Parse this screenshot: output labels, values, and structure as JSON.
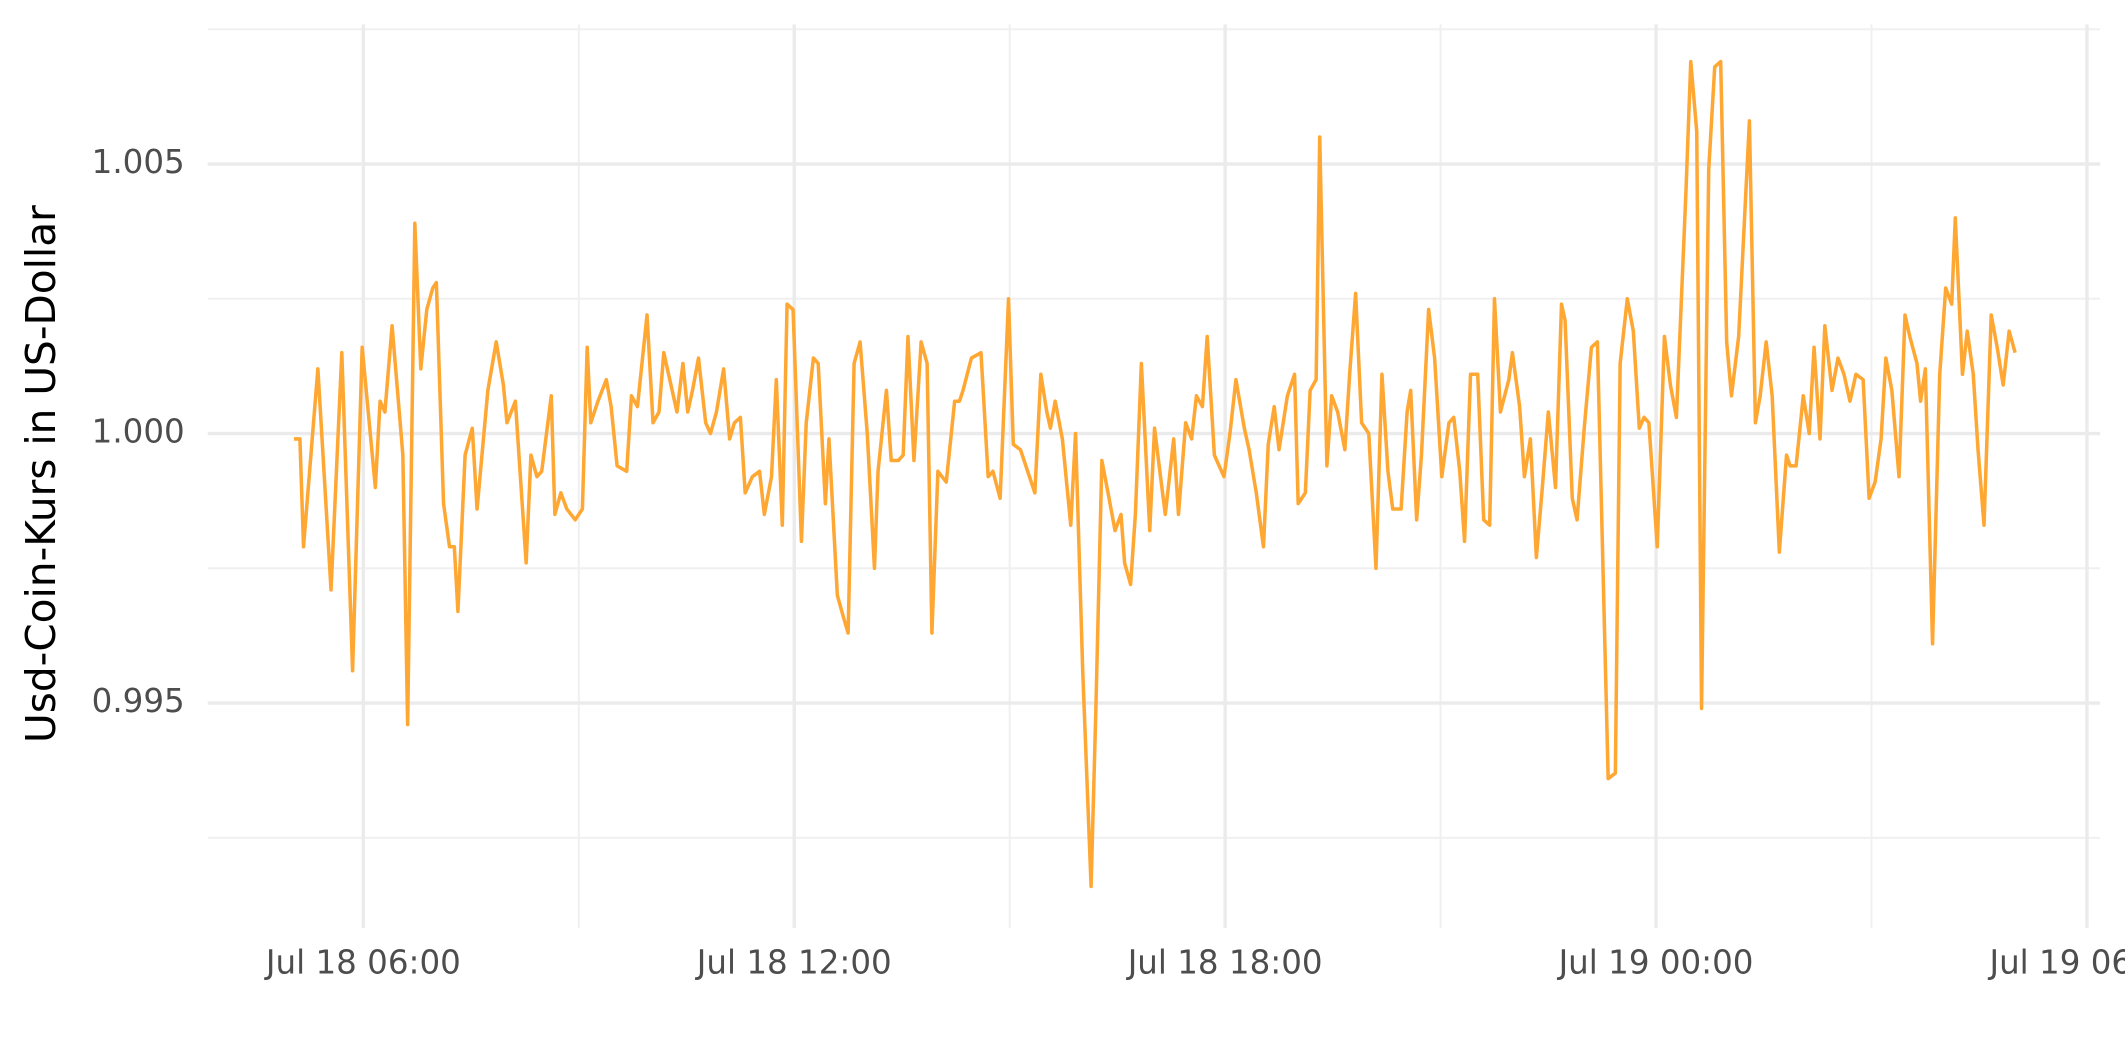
{
  "chart_data": {
    "type": "line",
    "y_label": "Usd-Coin-Kurs in US-Dollar",
    "color": "#ffa733",
    "grid": true,
    "xlim": [
      "Jul 18 03:50",
      "Jul 19 06:11"
    ],
    "xticks": [
      "Jul 18 06:00",
      "Jul 18 12:00",
      "Jul 18 18:00",
      "Jul 19 00:00",
      "Jul 19 06:00"
    ],
    "ylim": [
      0.99083,
      1.00759
    ],
    "yticks": [
      0.995,
      {
        "value": 1,
        "label": "1.000"
      },
      1.005
    ],
    "x": [
      "Jul 18 05:02",
      "Jul 18 05:07",
      "Jul 18 05:10",
      "Jul 18 05:22",
      "Jul 18 05:33",
      "Jul 18 05:42",
      "Jul 18 05:51",
      "Jul 18 05:59",
      "Jul 18 06:10",
      "Jul 18 06:14",
      "Jul 18 06:18",
      "Jul 18 06:24",
      "Jul 18 06:33",
      "Jul 18 06:37",
      "Jul 18 06:43",
      "Jul 18 06:48",
      "Jul 18 06:53",
      "Jul 18 06:58",
      "Jul 18 07:01",
      "Jul 18 07:07",
      "Jul 18 07:12",
      "Jul 18 07:16",
      "Jul 18 07:19",
      "Jul 18 07:25",
      "Jul 18 07:31",
      "Jul 18 07:35",
      "Jul 18 07:44",
      "Jul 18 07:51",
      "Jul 18 07:57",
      "Jul 18 08:00",
      "Jul 18 08:07",
      "Jul 18 08:16",
      "Jul 18 08:20",
      "Jul 18 08:25",
      "Jul 18 08:29",
      "Jul 18 08:37",
      "Jul 18 08:40",
      "Jul 18 08:45",
      "Jul 18 08:50",
      "Jul 18 08:57",
      "Jul 18 09:03",
      "Jul 18 09:07",
      "Jul 18 09:10",
      "Jul 18 09:16",
      "Jul 18 09:23",
      "Jul 18 09:27",
      "Jul 18 09:32",
      "Jul 18 09:40",
      "Jul 18 09:44",
      "Jul 18 09:49",
      "Jul 18 09:57",
      "Jul 18 10:02",
      "Jul 18 10:07",
      "Jul 18 10:11",
      "Jul 18 10:17",
      "Jul 18 10:22",
      "Jul 18 10:27",
      "Jul 18 10:31",
      "Jul 18 10:35",
      "Jul 18 10:40",
      "Jul 18 10:46",
      "Jul 18 10:50",
      "Jul 18 10:55",
      "Jul 18 11:01",
      "Jul 18 11:06",
      "Jul 18 11:10",
      "Jul 18 11:15",
      "Jul 18 11:19",
      "Jul 18 11:25",
      "Jul 18 11:31",
      "Jul 18 11:35",
      "Jul 18 11:41",
      "Jul 18 11:45",
      "Jul 18 11:50",
      "Jul 18 11:54",
      "Jul 18 11:59",
      "Jul 18 12:06",
      "Jul 18 12:10",
      "Jul 18 12:16",
      "Jul 18 12:20",
      "Jul 18 12:26",
      "Jul 18 12:29",
      "Jul 18 12:36",
      "Jul 18 12:41",
      "Jul 18 12:45",
      "Jul 18 12:50",
      "Jul 18 12:55",
      "Jul 18 13:01",
      "Jul 18 13:07",
      "Jul 18 13:10",
      "Jul 18 13:17",
      "Jul 18 13:21",
      "Jul 18 13:27",
      "Jul 18 13:31",
      "Jul 18 13:35",
      "Jul 18 13:40",
      "Jul 18 13:46",
      "Jul 18 13:51",
      "Jul 18 13:55",
      "Jul 18 14:00",
      "Jul 18 14:07",
      "Jul 18 14:14",
      "Jul 18 14:18",
      "Jul 18 14:21",
      "Jul 18 14:28",
      "Jul 18 14:36",
      "Jul 18 14:42",
      "Jul 18 14:46",
      "Jul 18 14:52",
      "Jul 18 14:59",
      "Jul 18 15:03",
      "Jul 18 15:09",
      "Jul 18 15:15",
      "Jul 18 15:21",
      "Jul 18 15:26",
      "Jul 18 15:31",
      "Jul 18 15:34",
      "Jul 18 15:38",
      "Jul 18 15:44",
      "Jul 18 15:51",
      "Jul 18 15:55",
      "Jul 18 16:01",
      "Jul 18 16:08",
      "Jul 18 16:12",
      "Jul 18 16:17",
      "Jul 18 16:23",
      "Jul 18 16:28",
      "Jul 18 16:33",
      "Jul 18 16:36",
      "Jul 18 16:41",
      "Jul 18 16:45",
      "Jul 18 16:50",
      "Jul 18 16:57",
      "Jul 18 17:01",
      "Jul 18 17:06",
      "Jul 18 17:10",
      "Jul 18 17:17",
      "Jul 18 17:21",
      "Jul 18 17:27",
      "Jul 18 17:32",
      "Jul 18 17:36",
      "Jul 18 17:41",
      "Jul 18 17:45",
      "Jul 18 17:51",
      "Jul 18 17:59",
      "Jul 18 18:04",
      "Jul 18 18:09",
      "Jul 18 18:16",
      "Jul 18 18:20",
      "Jul 18 18:26",
      "Jul 18 18:32",
      "Jul 18 18:36",
      "Jul 18 18:41",
      "Jul 18 18:45",
      "Jul 18 18:52",
      "Jul 18 18:58",
      "Jul 18 19:01",
      "Jul 18 19:07",
      "Jul 18 19:11",
      "Jul 18 19:16",
      "Jul 18 19:19",
      "Jul 18 19:25",
      "Jul 18 19:29",
      "Jul 18 19:34",
      "Jul 18 19:40",
      "Jul 18 19:44",
      "Jul 18 19:49",
      "Jul 18 19:54",
      "Jul 18 20:00",
      "Jul 18 20:06",
      "Jul 18 20:11",
      "Jul 18 20:16",
      "Jul 18 20:20",
      "Jul 18 20:27",
      "Jul 18 20:32",
      "Jul 18 20:35",
      "Jul 18 20:40",
      "Jul 18 20:44",
      "Jul 18 20:50",
      "Jul 18 20:55",
      "Jul 18 21:01",
      "Jul 18 21:07",
      "Jul 18 21:11",
      "Jul 18 21:16",
      "Jul 18 21:20",
      "Jul 18 21:25",
      "Jul 18 21:31",
      "Jul 18 21:36",
      "Jul 18 21:41",
      "Jul 18 21:45",
      "Jul 18 21:50",
      "Jul 18 21:57",
      "Jul 18 22:00",
      "Jul 18 22:06",
      "Jul 18 22:10",
      "Jul 18 22:15",
      "Jul 18 22:20",
      "Jul 18 22:25",
      "Jul 18 22:30",
      "Jul 18 22:36",
      "Jul 18 22:41",
      "Jul 18 22:44",
      "Jul 18 22:50",
      "Jul 18 22:54",
      "Jul 18 23:00",
      "Jul 18 23:06",
      "Jul 18 23:11",
      "Jul 18 23:20",
      "Jul 18 23:26",
      "Jul 18 23:30",
      "Jul 18 23:36",
      "Jul 18 23:41",
      "Jul 18 23:46",
      "Jul 18 23:50",
      "Jul 18 23:54",
      "Jul 19 00:01",
      "Jul 19 00:07",
      "Jul 19 00:12",
      "Jul 19 00:17",
      "Jul 19 00:25",
      "Jul 19 00:29",
      "Jul 19 00:34",
      "Jul 19 00:38",
      "Jul 19 00:44",
      "Jul 19 00:49",
      "Jul 19 00:54",
      "Jul 19 00:59",
      "Jul 19 01:03",
      "Jul 19 01:09",
      "Jul 19 01:18",
      "Jul 19 01:23",
      "Jul 19 01:27",
      "Jul 19 01:32",
      "Jul 19 01:37",
      "Jul 19 01:43",
      "Jul 19 01:49",
      "Jul 19 01:52",
      "Jul 19 01:57",
      "Jul 19 02:03",
      "Jul 19 02:08",
      "Jul 19 02:12",
      "Jul 19 02:17",
      "Jul 19 02:21",
      "Jul 19 02:27",
      "Jul 19 02:32",
      "Jul 19 02:37",
      "Jul 19 02:42",
      "Jul 19 02:47",
      "Jul 19 02:53",
      "Jul 19 02:58",
      "Jul 19 03:03",
      "Jul 19 03:08",
      "Jul 19 03:12",
      "Jul 19 03:17",
      "Jul 19 03:23",
      "Jul 19 03:28",
      "Jul 19 03:32",
      "Jul 19 03:38",
      "Jul 19 03:41",
      "Jul 19 03:45",
      "Jul 19 03:51",
      "Jul 19 03:57",
      "Jul 19 04:02",
      "Jul 19 04:07",
      "Jul 19 04:10",
      "Jul 19 04:16",
      "Jul 19 04:20",
      "Jul 19 04:25",
      "Jul 19 04:29",
      "Jul 19 04:34",
      "Jul 19 04:40",
      "Jul 19 04:45",
      "Jul 19 04:50",
      "Jul 19 04:55",
      "Jul 19 05:00"
    ],
    "values": [
      0.9999,
      0.9999,
      0.9979,
      1.0012,
      0.9971,
      1.0015,
      0.9956,
      1.0016,
      0.999,
      1.0006,
      1.0004,
      1.002,
      0.9996,
      0.9946,
      1.0039,
      1.0012,
      1.0023,
      1.0027,
      1.0028,
      0.9987,
      0.9979,
      0.9979,
      0.9967,
      0.9996,
      1.0001,
      0.9986,
      1.0008,
      1.0017,
      1.0009,
      1.0002,
      1.0006,
      0.9976,
      0.9996,
      0.9992,
      0.9993,
      1.0007,
      0.9985,
      0.9989,
      0.9986,
      0.9984,
      0.9986,
      1.0016,
      1.0002,
      1.0006,
      1.001,
      1.0005,
      0.9994,
      0.9993,
      1.0007,
      1.0005,
      1.0022,
      1.0002,
      1.0004,
      1.0015,
      1.0009,
      1.0004,
      1.0013,
      1.0004,
      1.0008,
      1.0014,
      1.0002,
      1.0,
      1.0004,
      1.0012,
      0.9999,
      1.0002,
      1.0003,
      0.9989,
      0.9992,
      0.9993,
      0.9985,
      0.9992,
      1.001,
      0.9983,
      1.0024,
      1.0023,
      0.998,
      1.0002,
      1.0014,
      1.0013,
      0.9987,
      0.9999,
      0.997,
      0.9966,
      0.9963,
      1.0013,
      1.0017,
      1.0,
      0.9975,
      0.9993,
      1.0008,
      0.9995,
      0.9995,
      0.9996,
      1.0018,
      0.9995,
      1.0017,
      1.0013,
      0.9963,
      0.9993,
      0.9991,
      1.0006,
      1.0006,
      1.0008,
      1.0014,
      1.0015,
      0.9992,
      0.9993,
      0.9988,
      1.0025,
      0.9998,
      0.9997,
      0.9993,
      0.9989,
      1.0011,
      1.0004,
      1.0001,
      1.0006,
      0.9999,
      0.9983,
      1.0,
      0.9956,
      0.9916,
      0.9949,
      0.9995,
      0.9988,
      0.9982,
      0.9985,
      0.9976,
      0.9972,
      0.9985,
      1.0013,
      0.9982,
      1.0001,
      0.9992,
      0.9985,
      0.9999,
      0.9985,
      1.0002,
      0.9999,
      1.0007,
      1.0005,
      1.0018,
      0.9996,
      0.9992,
      1.0,
      1.001,
      1.0001,
      0.9997,
      0.9989,
      0.9979,
      0.9998,
      1.0005,
      0.9997,
      1.0007,
      1.0011,
      0.9987,
      0.9989,
      1.0008,
      1.001,
      1.0055,
      0.9994,
      1.0007,
      1.0004,
      0.9997,
      1.0011,
      1.0026,
      1.0002,
      1.0,
      0.9975,
      1.0011,
      0.9993,
      0.9986,
      0.9986,
      1.0004,
      1.0008,
      0.9984,
      0.9996,
      1.0023,
      1.0014,
      0.9992,
      1.0002,
      1.0003,
      0.9993,
      0.998,
      1.0011,
      1.0011,
      0.9984,
      0.9983,
      1.0025,
      1.0004,
      1.001,
      1.0015,
      1.0005,
      0.9992,
      0.9999,
      0.9977,
      0.999,
      1.0004,
      0.999,
      1.0024,
      1.0021,
      0.9988,
      0.9984,
      1.0001,
      1.0016,
      1.0017,
      0.9936,
      0.9937,
      1.0013,
      1.0025,
      1.0019,
      1.0001,
      1.0003,
      1.0002,
      0.9979,
      1.0018,
      1.0009,
      1.0003,
      1.0045,
      1.0069,
      1.0056,
      0.9949,
      1.0049,
      1.0068,
      1.0069,
      1.0017,
      1.0007,
      1.0018,
      1.0058,
      1.0002,
      1.0007,
      1.0017,
      1.0007,
      0.9978,
      0.9996,
      0.9994,
      0.9994,
      1.0007,
      1.0,
      1.0016,
      0.9999,
      1.002,
      1.0008,
      1.0014,
      1.0011,
      1.0006,
      1.0011,
      1.001,
      0.9988,
      0.9991,
      0.9999,
      1.0014,
      1.0008,
      0.9992,
      1.0022,
      1.0018,
      1.0013,
      1.0006,
      1.0012,
      0.9961,
      1.0011,
      1.0027,
      1.0024,
      1.004,
      1.0011,
      1.0019,
      1.0011,
      0.9997,
      0.9983,
      1.0022,
      1.0016,
      1.0009,
      1.0019,
      1.0015
    ]
  }
}
